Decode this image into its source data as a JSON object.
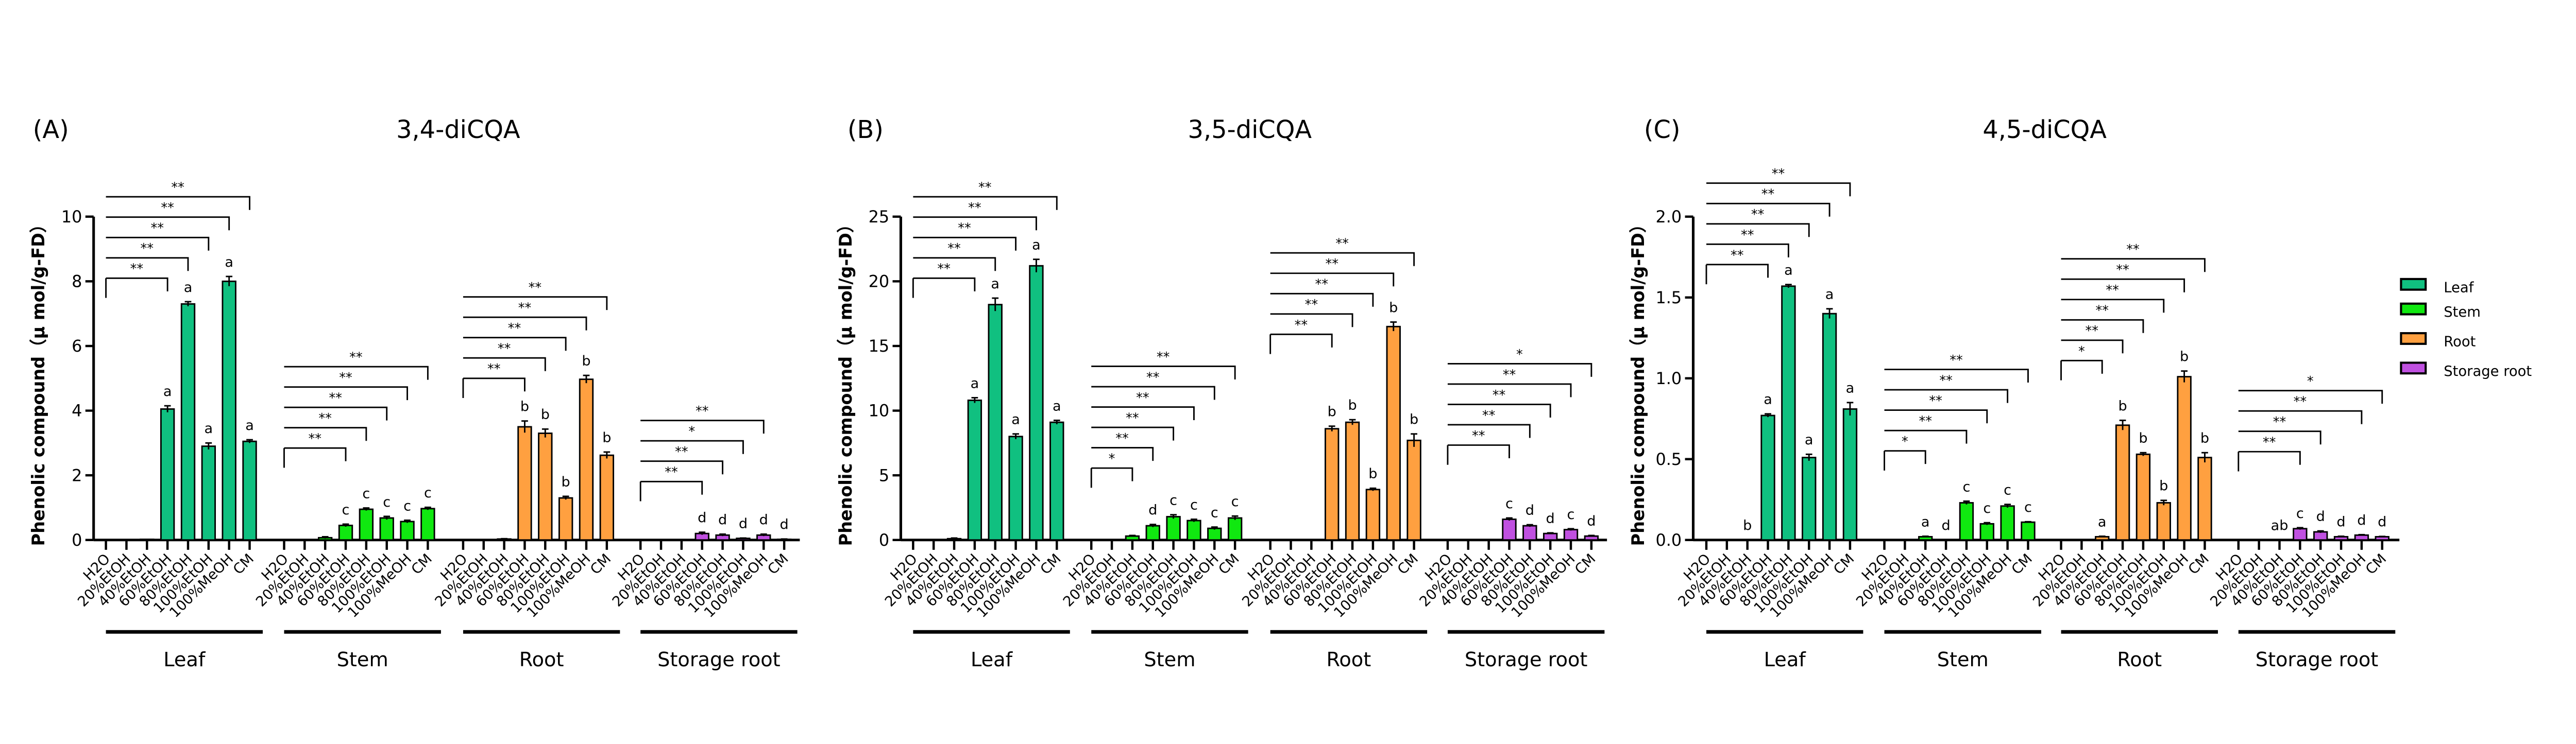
{
  "legend": [
    {
      "label": "Leaf",
      "color": "#10c080"
    },
    {
      "label": "Stem",
      "color": "#10e810"
    },
    {
      "label": "Root",
      "color": "#ffa040"
    },
    {
      "label": "Storage root",
      "color": "#c050e0"
    }
  ],
  "chart_data": [
    {
      "type": "bar",
      "panel_label": "(A)",
      "title": "3,4-diCQA",
      "ylabel": "Phenolic compound（μ mol/g-FD）",
      "ylim": [
        0,
        10
      ],
      "yticks": [
        0,
        2,
        4,
        6,
        8,
        10
      ],
      "ytick_labels": [
        "0",
        "2",
        "4",
        "6",
        "8",
        "10"
      ],
      "categories": [
        "H2O",
        "20%EtOH",
        "40%EtOH",
        "60%EtOH",
        "80%EtOH",
        "100%EtOH",
        "100%MeOH",
        "CM"
      ],
      "groups": [
        {
          "name": "Leaf",
          "values": [
            0,
            0,
            0.02,
            4.05,
            7.3,
            2.9,
            8.0,
            3.05
          ],
          "errors": [
            0,
            0,
            0,
            0.1,
            0.07,
            0.1,
            0.15,
            0.05
          ],
          "letters": [
            "",
            "",
            "",
            "a",
            "a",
            "a",
            "a",
            "a"
          ],
          "significance": [
            {
              "to": "60%EtOH",
              "label": "**"
            },
            {
              "to": "80%EtOH",
              "label": "**"
            },
            {
              "to": "100%EtOH",
              "label": "**"
            },
            {
              "to": "100%MeOH",
              "label": "**"
            },
            {
              "to": "CM",
              "label": "**"
            }
          ]
        },
        {
          "name": "Stem",
          "values": [
            0,
            0,
            0.07,
            0.45,
            0.95,
            0.68,
            0.57,
            0.97
          ],
          "errors": [
            0,
            0,
            0.03,
            0.04,
            0.04,
            0.05,
            0.04,
            0.04
          ],
          "letters": [
            "",
            "",
            "",
            "c",
            "c",
            "c",
            "c",
            "c"
          ],
          "significance": [
            {
              "to": "60%EtOH",
              "label": "**"
            },
            {
              "to": "80%EtOH",
              "label": "**"
            },
            {
              "to": "100%EtOH",
              "label": "**"
            },
            {
              "to": "100%MeOH",
              "label": "**"
            },
            {
              "to": "CM",
              "label": "**"
            }
          ]
        },
        {
          "name": "Root",
          "values": [
            0,
            0,
            0.03,
            3.5,
            3.3,
            1.3,
            4.97,
            2.62
          ],
          "errors": [
            0,
            0,
            0.01,
            0.18,
            0.13,
            0.05,
            0.12,
            0.1
          ],
          "letters": [
            "",
            "",
            "",
            "b",
            "b",
            "b",
            "b",
            "b"
          ],
          "significance": [
            {
              "to": "60%EtOH",
              "label": "**"
            },
            {
              "to": "80%EtOH",
              "label": "**"
            },
            {
              "to": "100%EtOH",
              "label": "**"
            },
            {
              "to": "100%MeOH",
              "label": "**"
            },
            {
              "to": "CM",
              "label": "**"
            }
          ]
        },
        {
          "name": "Storage root",
          "values": [
            0,
            0,
            0,
            0.2,
            0.15,
            0.05,
            0.15,
            0.02
          ],
          "errors": [
            0,
            0,
            0,
            0.04,
            0.03,
            0.01,
            0.03,
            0.01
          ],
          "letters": [
            "",
            "",
            "",
            "d",
            "d",
            "d",
            "d",
            "d"
          ],
          "significance": [
            {
              "to": "60%EtOH",
              "label": "**"
            },
            {
              "to": "80%EtOH",
              "label": "**"
            },
            {
              "to": "100%EtOH",
              "label": "*"
            },
            {
              "to": "100%MeOH",
              "label": "**"
            }
          ]
        }
      ]
    },
    {
      "type": "bar",
      "panel_label": "(B)",
      "title": "3,5-diCQA",
      "ylabel": "Phenolic compound（μ mol/g-FD）",
      "ylim": [
        0,
        25
      ],
      "yticks": [
        0,
        5,
        10,
        15,
        20,
        25
      ],
      "ytick_labels": [
        "0",
        "5",
        "10",
        "15",
        "20",
        "25"
      ],
      "categories": [
        "H2O",
        "20%EtOH",
        "40%EtOH",
        "60%EtOH",
        "80%EtOH",
        "100%EtOH",
        "100%MeOH",
        "CM"
      ],
      "groups": [
        {
          "name": "Leaf",
          "values": [
            0,
            0,
            0.1,
            10.8,
            18.2,
            8.0,
            21.2,
            9.1
          ],
          "errors": [
            0,
            0,
            0.05,
            0.2,
            0.5,
            0.2,
            0.5,
            0.15
          ],
          "letters": [
            "",
            "",
            "",
            "a",
            "a",
            "a",
            "a",
            "a"
          ],
          "significance": [
            {
              "to": "60%EtOH",
              "label": "**"
            },
            {
              "to": "80%EtOH",
              "label": "**"
            },
            {
              "to": "100%EtOH",
              "label": "**"
            },
            {
              "to": "100%MeOH",
              "label": "**"
            },
            {
              "to": "CM",
              "label": "**"
            }
          ]
        },
        {
          "name": "Stem",
          "values": [
            0,
            0,
            0.3,
            1.1,
            1.8,
            1.5,
            0.9,
            1.7
          ],
          "errors": [
            0,
            0,
            0.05,
            0.1,
            0.15,
            0.1,
            0.1,
            0.15
          ],
          "letters": [
            "",
            "",
            "",
            "d",
            "c",
            "c",
            "c",
            "c"
          ],
          "significance": [
            {
              "to": "40%EtOH",
              "label": "*"
            },
            {
              "to": "60%EtOH",
              "label": "**"
            },
            {
              "to": "80%EtOH",
              "label": "**"
            },
            {
              "to": "100%EtOH",
              "label": "**"
            },
            {
              "to": "100%MeOH",
              "label": "**"
            },
            {
              "to": "CM",
              "label": "**"
            }
          ]
        },
        {
          "name": "Root",
          "values": [
            0,
            0,
            0,
            8.6,
            9.1,
            3.9,
            16.5,
            7.7
          ],
          "errors": [
            0,
            0,
            0,
            0.2,
            0.2,
            0.1,
            0.35,
            0.5
          ],
          "letters": [
            "",
            "",
            "",
            "b",
            "b",
            "b",
            "b",
            "b"
          ],
          "significance": [
            {
              "to": "60%EtOH",
              "label": "**"
            },
            {
              "to": "80%EtOH",
              "label": "**"
            },
            {
              "to": "100%EtOH",
              "label": "**"
            },
            {
              "to": "100%MeOH",
              "label": "**"
            },
            {
              "to": "CM",
              "label": "**"
            }
          ]
        },
        {
          "name": "Storage root",
          "values": [
            0,
            0,
            0,
            1.6,
            1.1,
            0.5,
            0.8,
            0.3
          ],
          "errors": [
            0,
            0,
            0,
            0.1,
            0.08,
            0.05,
            0.07,
            0.05
          ],
          "letters": [
            "",
            "",
            "",
            "c",
            "d",
            "d",
            "c",
            "d"
          ],
          "significance": [
            {
              "to": "60%EtOH",
              "label": "**"
            },
            {
              "to": "80%EtOH",
              "label": "**"
            },
            {
              "to": "100%EtOH",
              "label": "**"
            },
            {
              "to": "100%MeOH",
              "label": "**"
            },
            {
              "to": "CM",
              "label": "*"
            }
          ]
        }
      ]
    },
    {
      "type": "bar",
      "panel_label": "(C)",
      "title": "4,5-diCQA",
      "ylabel": "Phenolic compound（μ mol/g-FD）",
      "ylim": [
        0,
        2.0
      ],
      "yticks": [
        0,
        0.5,
        1.0,
        1.5,
        2.0
      ],
      "ytick_labels": [
        "0.0",
        "0.5",
        "1.0",
        "1.5",
        "2.0"
      ],
      "categories": [
        "H2O",
        "20%EtOH",
        "40%EtOH",
        "60%EtOH",
        "80%EtOH",
        "100%EtOH",
        "100%MeOH",
        "CM"
      ],
      "groups": [
        {
          "name": "Leaf",
          "values": [
            0,
            0,
            0,
            0.77,
            1.57,
            0.51,
            1.4,
            0.81
          ],
          "errors": [
            0,
            0,
            0,
            0.01,
            0.01,
            0.02,
            0.03,
            0.04
          ],
          "letters": [
            "",
            "",
            "b",
            "a",
            "a",
            "a",
            "a",
            "a"
          ],
          "significance": [
            {
              "to": "60%EtOH",
              "label": "**"
            },
            {
              "to": "80%EtOH",
              "label": "**"
            },
            {
              "to": "100%EtOH",
              "label": "**"
            },
            {
              "to": "100%MeOH",
              "label": "**"
            },
            {
              "to": "CM",
              "label": "**"
            }
          ]
        },
        {
          "name": "Stem",
          "values": [
            0,
            0,
            0.02,
            0,
            0.23,
            0.1,
            0.21,
            0.11
          ],
          "errors": [
            0,
            0,
            0.003,
            0,
            0.01,
            0.007,
            0.01,
            0.003
          ],
          "letters": [
            "",
            "",
            "a",
            "d",
            "c",
            "c",
            "c",
            "c"
          ],
          "significance": [
            {
              "to": "40%EtOH",
              "label": "*"
            },
            {
              "to": "80%EtOH",
              "label": "**"
            },
            {
              "to": "100%EtOH",
              "label": "**"
            },
            {
              "to": "100%MeOH",
              "label": "**"
            },
            {
              "to": "CM",
              "label": "**"
            }
          ]
        },
        {
          "name": "Root",
          "values": [
            0,
            0,
            0.02,
            0.71,
            0.53,
            0.23,
            1.01,
            0.51
          ],
          "errors": [
            0,
            0,
            0.003,
            0.03,
            0.01,
            0.015,
            0.035,
            0.03
          ],
          "letters": [
            "",
            "",
            "a",
            "b",
            "b",
            "b",
            "b",
            "b"
          ],
          "significance": [
            {
              "to": "40%EtOH",
              "label": "*"
            },
            {
              "to": "60%EtOH",
              "label": "**"
            },
            {
              "to": "80%EtOH",
              "label": "**"
            },
            {
              "to": "100%EtOH",
              "label": "**"
            },
            {
              "to": "100%MeOH",
              "label": "**"
            },
            {
              "to": "CM",
              "label": "**"
            }
          ]
        },
        {
          "name": "Storage root",
          "values": [
            0,
            0,
            0,
            0.07,
            0.05,
            0.02,
            0.03,
            0.02
          ],
          "errors": [
            0,
            0,
            0,
            0.006,
            0.006,
            0.003,
            0.003,
            0.002
          ],
          "letters": [
            "",
            "",
            "ab",
            "c",
            "d",
            "d",
            "d",
            "d"
          ],
          "significance": [
            {
              "to": "60%EtOH",
              "label": "**"
            },
            {
              "to": "80%EtOH",
              "label": "**"
            },
            {
              "to": "100%MeOH",
              "label": "**"
            },
            {
              "to": "CM",
              "label": "*"
            }
          ]
        }
      ]
    }
  ]
}
